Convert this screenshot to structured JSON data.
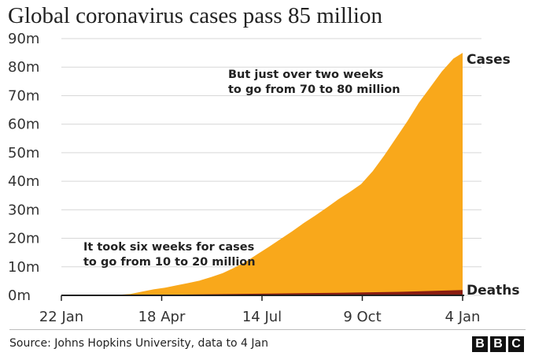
{
  "title": "Global coronavirus cases pass 85 million",
  "source": "Source: Johns Hopkins University, data to 4 Jan",
  "logo_letters": [
    "B",
    "B",
    "C"
  ],
  "colors": {
    "cases": "#f9a81b",
    "deaths": "#8a1d11",
    "grid": "#d7d7d7",
    "axis": "#222222"
  },
  "chart_data": {
    "type": "area",
    "title": "Global coronavirus cases pass 85 million",
    "xlabel": "",
    "ylabel": "",
    "ylim": [
      0,
      90
    ],
    "y_unit": "million",
    "y_ticks": [
      {
        "value": 0,
        "label": "0m"
      },
      {
        "value": 10,
        "label": "10m"
      },
      {
        "value": 20,
        "label": "20m"
      },
      {
        "value": 30,
        "label": "30m"
      },
      {
        "value": 40,
        "label": "40m"
      },
      {
        "value": 50,
        "label": "50m"
      },
      {
        "value": 60,
        "label": "60m"
      },
      {
        "value": 70,
        "label": "70m"
      },
      {
        "value": 80,
        "label": "80m"
      },
      {
        "value": 90,
        "label": "90m"
      }
    ],
    "x_unit": "days since 22 Jan 2020",
    "xlim": [
      0,
      348
    ],
    "x_ticks": [
      {
        "value": 0,
        "label": "22 Jan"
      },
      {
        "value": 87,
        "label": "18 Apr"
      },
      {
        "value": 174,
        "label": "14 Jul"
      },
      {
        "value": 261,
        "label": "9 Oct"
      },
      {
        "value": 348,
        "label": "4 Jan"
      }
    ],
    "series": [
      {
        "name": "Cases",
        "x": [
          0,
          20,
          40,
          50,
          60,
          70,
          80,
          90,
          100,
          110,
          120,
          130,
          140,
          150,
          160,
          170,
          180,
          190,
          200,
          210,
          220,
          230,
          240,
          250,
          260,
          270,
          280,
          290,
          300,
          310,
          320,
          330,
          340,
          348
        ],
        "values": [
          0,
          0.1,
          0.1,
          0.2,
          0.5,
          1.3,
          2.1,
          2.7,
          3.5,
          4.3,
          5.2,
          6.4,
          7.8,
          9.7,
          11.8,
          14.4,
          17.0,
          19.7,
          22.4,
          25.3,
          27.9,
          30.7,
          33.6,
          36.2,
          39.0,
          43.5,
          49.0,
          55.0,
          61.0,
          67.5,
          73.0,
          78.5,
          83.0,
          85.0
        ]
      },
      {
        "name": "Deaths",
        "x": [
          0,
          60,
          120,
          180,
          240,
          300,
          348
        ],
        "values": [
          0,
          0.05,
          0.37,
          0.6,
          0.9,
          1.3,
          1.85
        ]
      }
    ],
    "annotations": [
      {
        "text_lines": [
          "But just over two weeks",
          "to go from 70 to 80 million"
        ]
      },
      {
        "text_lines": [
          "It took six weeks for cases",
          "to go from 10 to 20 million"
        ]
      }
    ],
    "series_labels": [
      "Cases",
      "Deaths"
    ]
  }
}
